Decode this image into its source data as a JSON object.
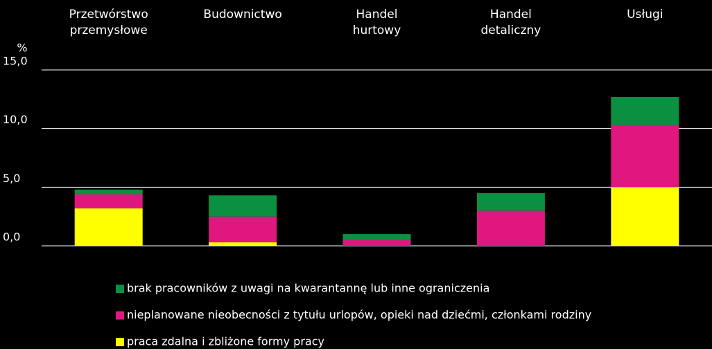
{
  "chart_data": {
    "type": "stacked_bar",
    "y_label": "%",
    "categories": [
      "Przetwórstwo\nprzemysłowe",
      "Budownictwo",
      "Handel\nhurtowy",
      "Handel\ndetaliczny",
      "Usługi"
    ],
    "series": [
      {
        "name": "praca zdalna i zbliżone formy pracy",
        "color": "#ffff00",
        "values": [
          3.2,
          0.3,
          0,
          0,
          5.0
        ]
      },
      {
        "name": "nieplanowane nieobecności z tytułu urlopów, opieki nad dziećmi, członkami rodziny",
        "color": "#e0177e",
        "values": [
          1.2,
          2.2,
          0.5,
          3.0,
          5.3
        ]
      },
      {
        "name": "brak pracowników z uwagi na kwarantannę lub inne ograniczenia",
        "color": "#0a9040",
        "values": [
          0.4,
          1.8,
          0.5,
          1.5,
          2.4
        ]
      }
    ],
    "ylim": [
      0,
      15
    ],
    "yticks": [
      {
        "value": 0,
        "label": "0,0"
      },
      {
        "value": 5,
        "label": "5,0"
      },
      {
        "value": 10,
        "label": "10,0"
      },
      {
        "value": 15,
        "label": "15,0"
      }
    ],
    "grid": true
  }
}
